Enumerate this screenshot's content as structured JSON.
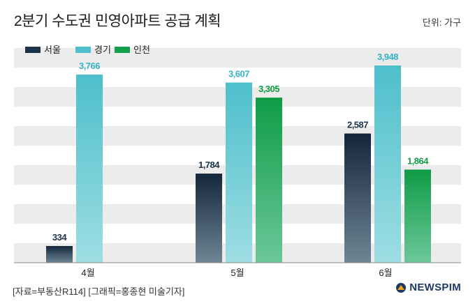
{
  "header": {
    "title": "2분기 수도권 민영아파트 공급 계획",
    "unit": "단위: 가구"
  },
  "footer": {
    "source": "[자료=부동산R114] [그래픽=홍종현 미술기자]",
    "logo_text": "NEWSPIM"
  },
  "colors": {
    "seoul": "#1c3349",
    "gyeonggi": "#4dc0cc",
    "incheon": "#14a04c",
    "stripe": "#ececec"
  },
  "chart_data": {
    "type": "bar",
    "categories": [
      "4월",
      "5월",
      "6월"
    ],
    "series": [
      {
        "name": "서울",
        "values": [
          334,
          1784,
          2587
        ],
        "labels": [
          "334",
          "1,784",
          "2,587"
        ]
      },
      {
        "name": "경기",
        "values": [
          3766,
          3607,
          3948
        ],
        "labels": [
          "3,766",
          "3,607",
          "3,948"
        ]
      },
      {
        "name": "인천",
        "values": [
          null,
          3305,
          1864
        ],
        "labels": [
          "",
          "3,305",
          "1,864"
        ]
      }
    ],
    "title": "2분기 수도권 민영아파트 공급 계획",
    "ylim": [
      0,
      4200
    ],
    "grid": "horizontal-bands",
    "legend": "top-left"
  }
}
